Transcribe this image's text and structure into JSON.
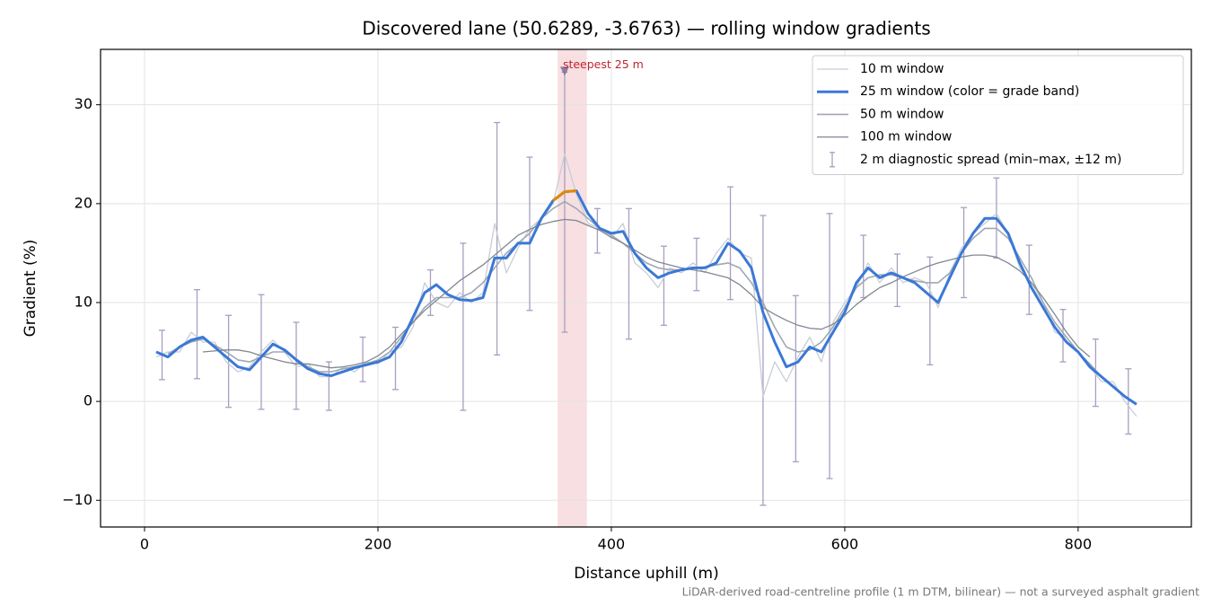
{
  "chart_data": {
    "type": "line",
    "title": "Discovered lane (50.6289, -3.6763) — rolling window gradients",
    "x_label": "Distance uphill (m)",
    "y_label": "Gradient (%)",
    "caption": "LiDAR-derived road-centreline profile (1 m DTM, bilinear) — not a surveyed asphalt gradient",
    "xlim": [
      -37.7,
      897
    ],
    "ylim": [
      -12.7,
      35.6
    ],
    "xticks": [
      0,
      200,
      400,
      600,
      800
    ],
    "yticks": [
      {
        "value": -10,
        "label": "−10"
      },
      0,
      10,
      20,
      30
    ],
    "grid": true,
    "legend": "upper right",
    "x": [
      10,
      20,
      30,
      40,
      50,
      60,
      70,
      80,
      90,
      100,
      110,
      120,
      130,
      140,
      150,
      160,
      170,
      180,
      190,
      200,
      210,
      220,
      230,
      240,
      250,
      260,
      270,
      280,
      290,
      300,
      310,
      320,
      330,
      340,
      350,
      360,
      370,
      380,
      390,
      400,
      410,
      420,
      430,
      440,
      450,
      460,
      470,
      480,
      490,
      500,
      510,
      520,
      530,
      540,
      550,
      560,
      570,
      580,
      590,
      600,
      610,
      620,
      630,
      640,
      650,
      660,
      670,
      680,
      690,
      700,
      710,
      720,
      730,
      740,
      750,
      760,
      770,
      780,
      790,
      800,
      810,
      820,
      830,
      840,
      850
    ],
    "series": [
      {
        "name": "10 m window",
        "color": "#c8cdd6",
        "linewidth": 1.3,
        "values": [
          4.5,
          5,
          5,
          7,
          6,
          6,
          4,
          3,
          3.5,
          5,
          6.2,
          5,
          3.5,
          3.8,
          2.5,
          2.5,
          3.5,
          3,
          4,
          3.8,
          5,
          5.5,
          7.5,
          12,
          10,
          9.5,
          11,
          10,
          11,
          18,
          13,
          15.5,
          17.5,
          18.5,
          20,
          25,
          21,
          18,
          17.5,
          16.5,
          18,
          14,
          13,
          11.5,
          13.5,
          13,
          14,
          13,
          15,
          16.5,
          15,
          14.5,
          0.5,
          4,
          2,
          4.5,
          6.5,
          4,
          8,
          10,
          11.5,
          14,
          12,
          13.5,
          12,
          12.5,
          12,
          9.5,
          13,
          15.5,
          17,
          18,
          19,
          17,
          13.5,
          12,
          10,
          7,
          6.5,
          5,
          3.5,
          2,
          2,
          0,
          -1.5
        ]
      },
      {
        "name": "25 m window (color = grade band)",
        "color": "#3a78d6",
        "linewidth": 3,
        "grade_bands": [
          {
            "min": 20,
            "color": "#e08a00"
          }
        ],
        "values": [
          5,
          4.5,
          5.5,
          6.2,
          6.5,
          5.5,
          4.5,
          3.5,
          3.2,
          4.5,
          5.8,
          5.2,
          4.2,
          3.3,
          2.8,
          2.6,
          3,
          3.4,
          3.7,
          4,
          4.5,
          6,
          8.5,
          11,
          11.8,
          10.8,
          10.3,
          10.2,
          10.5,
          14.5,
          14.5,
          16,
          16,
          18.5,
          20.3,
          21.2,
          21.3,
          19,
          17.5,
          17,
          17.2,
          15,
          13.5,
          12.5,
          13,
          13.3,
          13.5,
          13.5,
          14,
          16,
          15.2,
          13.5,
          9,
          6,
          3.5,
          4,
          5.5,
          5,
          7,
          9,
          12,
          13.5,
          12.5,
          13,
          12.5,
          12,
          11,
          10,
          12.5,
          15,
          17,
          18.5,
          18.5,
          17,
          14,
          11.5,
          9.5,
          7.5,
          6,
          5,
          3.5,
          2.5,
          1.5,
          0.5,
          -0.3
        ]
      },
      {
        "name": "50 m window",
        "color": "#a0a8b4",
        "linewidth": 1.6,
        "values": [
          null,
          4.8,
          5.5,
          6,
          6.3,
          5.7,
          5,
          4.2,
          4,
          4.5,
          5,
          5,
          4.3,
          3.5,
          3,
          3,
          3.3,
          3.5,
          3.8,
          4.2,
          5,
          6.5,
          8,
          9.5,
          10.5,
          10.5,
          10.5,
          11,
          12,
          13.5,
          15,
          16,
          17,
          18.5,
          19.5,
          20.2,
          19.5,
          18.5,
          17.5,
          16.8,
          16,
          15,
          14,
          13.5,
          13.3,
          13.3,
          13.5,
          13.6,
          13.8,
          14,
          13.5,
          12,
          10,
          7.5,
          5.5,
          5,
          5.2,
          6,
          7.5,
          9.5,
          11.5,
          12.5,
          12.8,
          12.8,
          12.5,
          12.2,
          12,
          12,
          13,
          15,
          16.5,
          17.5,
          17.5,
          16.5,
          14.5,
          12.5,
          10,
          8,
          6.5,
          5,
          3.8,
          2.5,
          1.5,
          0.5,
          null
        ]
      },
      {
        "name": "100 m window",
        "color": "#808892",
        "linewidth": 1.3,
        "values": [
          null,
          null,
          null,
          null,
          5,
          5.1,
          5.2,
          5.2,
          5,
          4.6,
          4.3,
          4,
          3.8,
          3.8,
          3.6,
          3.4,
          3.5,
          3.7,
          4,
          4.6,
          5.5,
          6.8,
          8,
          9.2,
          10.2,
          11.2,
          12.2,
          13,
          13.8,
          14.8,
          15.8,
          16.8,
          17.4,
          17.9,
          18.2,
          18.4,
          18.3,
          17.8,
          17.3,
          16.6,
          16,
          15.3,
          14.6,
          14.1,
          13.8,
          13.5,
          13.3,
          13.1,
          12.8,
          12.5,
          11.8,
          10.8,
          9.5,
          8.8,
          8.2,
          7.7,
          7.4,
          7.3,
          7.8,
          8.7,
          9.8,
          10.7,
          11.5,
          12,
          12.6,
          13.1,
          13.6,
          14,
          14.3,
          14.6,
          14.8,
          14.8,
          14.6,
          14,
          13.2,
          12,
          10.5,
          8.8,
          7,
          5.5,
          4.5,
          null,
          null,
          null,
          null
        ]
      }
    ],
    "spread": {
      "name": "2 m diagnostic spread (min–max, ±12 m)",
      "color": "#a79fc0",
      "x": [
        15,
        45,
        72,
        100,
        130,
        158,
        187,
        215,
        245,
        273,
        302,
        330,
        360,
        388,
        415,
        445,
        473,
        502,
        530,
        558,
        587,
        616,
        645,
        673,
        702,
        730,
        758,
        787,
        815,
        843
      ],
      "low": [
        2.2,
        2.3,
        -0.6,
        -0.8,
        -0.8,
        -0.9,
        2,
        1.2,
        8.7,
        -0.9,
        4.7,
        9.2,
        7,
        15,
        6.3,
        7.7,
        11.2,
        10.3,
        -10.5,
        -6.1,
        -7.8,
        10.5,
        9.6,
        3.7,
        10.5,
        14.5,
        8.8,
        4,
        -0.5,
        -3.3
      ],
      "high": [
        7.2,
        11.3,
        8.7,
        10.8,
        8,
        4,
        6.5,
        7.5,
        13.3,
        16,
        28.2,
        24.7,
        33.3,
        19.5,
        19.5,
        15.7,
        16.5,
        21.7,
        18.8,
        10.7,
        19,
        16.8,
        14.9,
        14.6,
        19.6,
        22.6,
        15.8,
        9.3,
        6.3,
        3.3
      ]
    },
    "steepest": {
      "label": "steepest 25 m",
      "span": [
        354,
        379
      ],
      "x": 360,
      "value": 33.3,
      "color": "#d9606e"
    }
  }
}
